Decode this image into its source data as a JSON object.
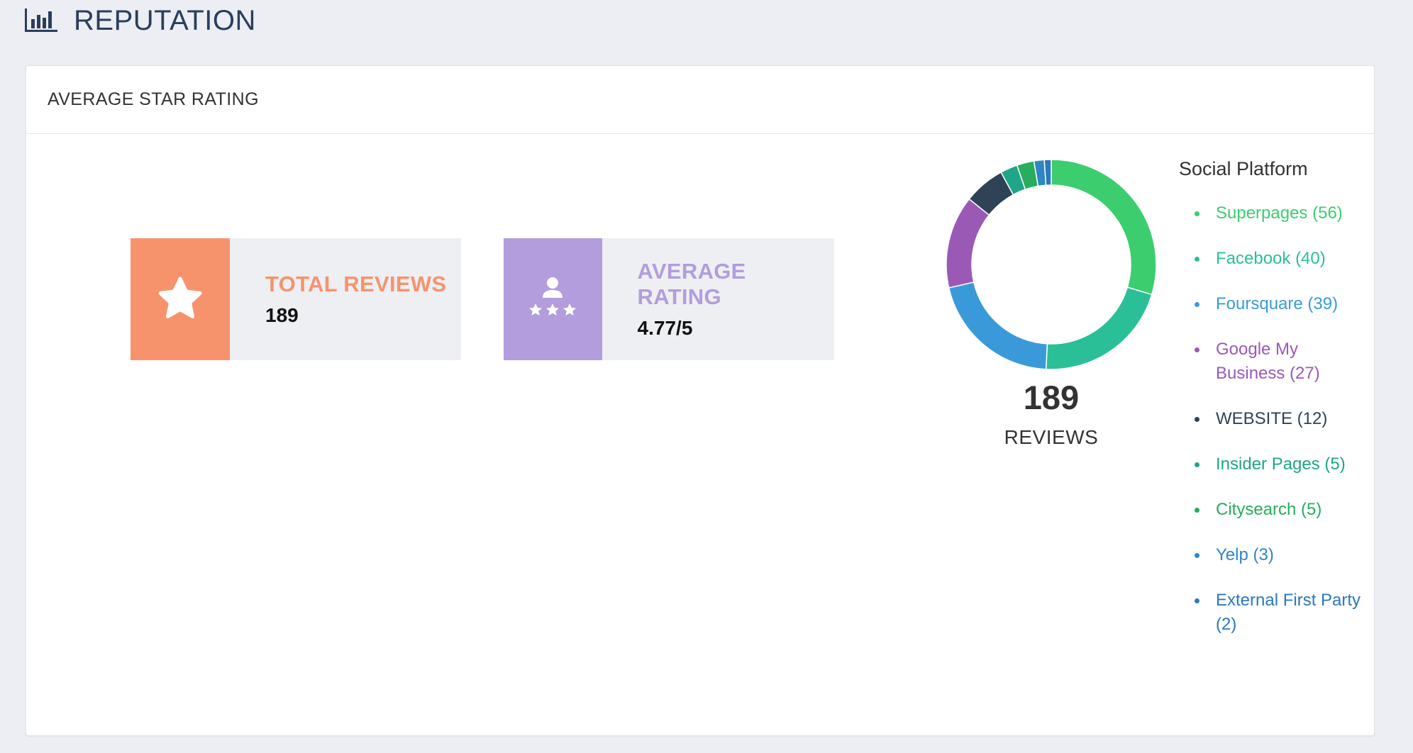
{
  "header": {
    "title": "REPUTATION",
    "icon": "bar-chart-icon"
  },
  "card": {
    "title": "AVERAGE STAR RATING"
  },
  "stats": {
    "total_reviews": {
      "label": "TOTAL REVIEWS",
      "value": "189",
      "icon": "star-icon",
      "accent": "#f7936c",
      "label_color": "#f7936c"
    },
    "average_rating": {
      "label": "AVERAGE RATING",
      "value": "4.77/5",
      "icon": "person-stars-icon",
      "accent": "#b39ddc",
      "label_color": "#b39ddc"
    }
  },
  "chart_data": {
    "type": "pie",
    "donut": true,
    "total": 189,
    "total_label": "189",
    "caption": "REVIEWS",
    "legend_title": "Social Platform",
    "legend_placement": "right",
    "slices": [
      {
        "name": "Superpages",
        "value": 56,
        "label": "Superpages (56)",
        "color": "#3ccd6f"
      },
      {
        "name": "Facebook",
        "value": 40,
        "label": "Facebook (40)",
        "color": "#2bbf97"
      },
      {
        "name": "Foursquare",
        "value": 39,
        "label": "Foursquare (39)",
        "color": "#3a9ad9"
      },
      {
        "name": "Google My Business",
        "value": 27,
        "label": "Google My Business (27)",
        "color": "#9b59b6"
      },
      {
        "name": "WEBSITE",
        "value": 12,
        "label": "WEBSITE (12)",
        "color": "#2f4357"
      },
      {
        "name": "Insider Pages",
        "value": 5,
        "label": "Insider Pages (5)",
        "color": "#1fa587"
      },
      {
        "name": "Citysearch",
        "value": 5,
        "label": "Citysearch (5)",
        "color": "#28ad5c"
      },
      {
        "name": "Yelp",
        "value": 3,
        "label": "Yelp (3)",
        "color": "#2f86c5"
      },
      {
        "name": "External First Party",
        "value": 2,
        "label": "External First Party (2)",
        "color": "#2b78bd"
      }
    ]
  }
}
